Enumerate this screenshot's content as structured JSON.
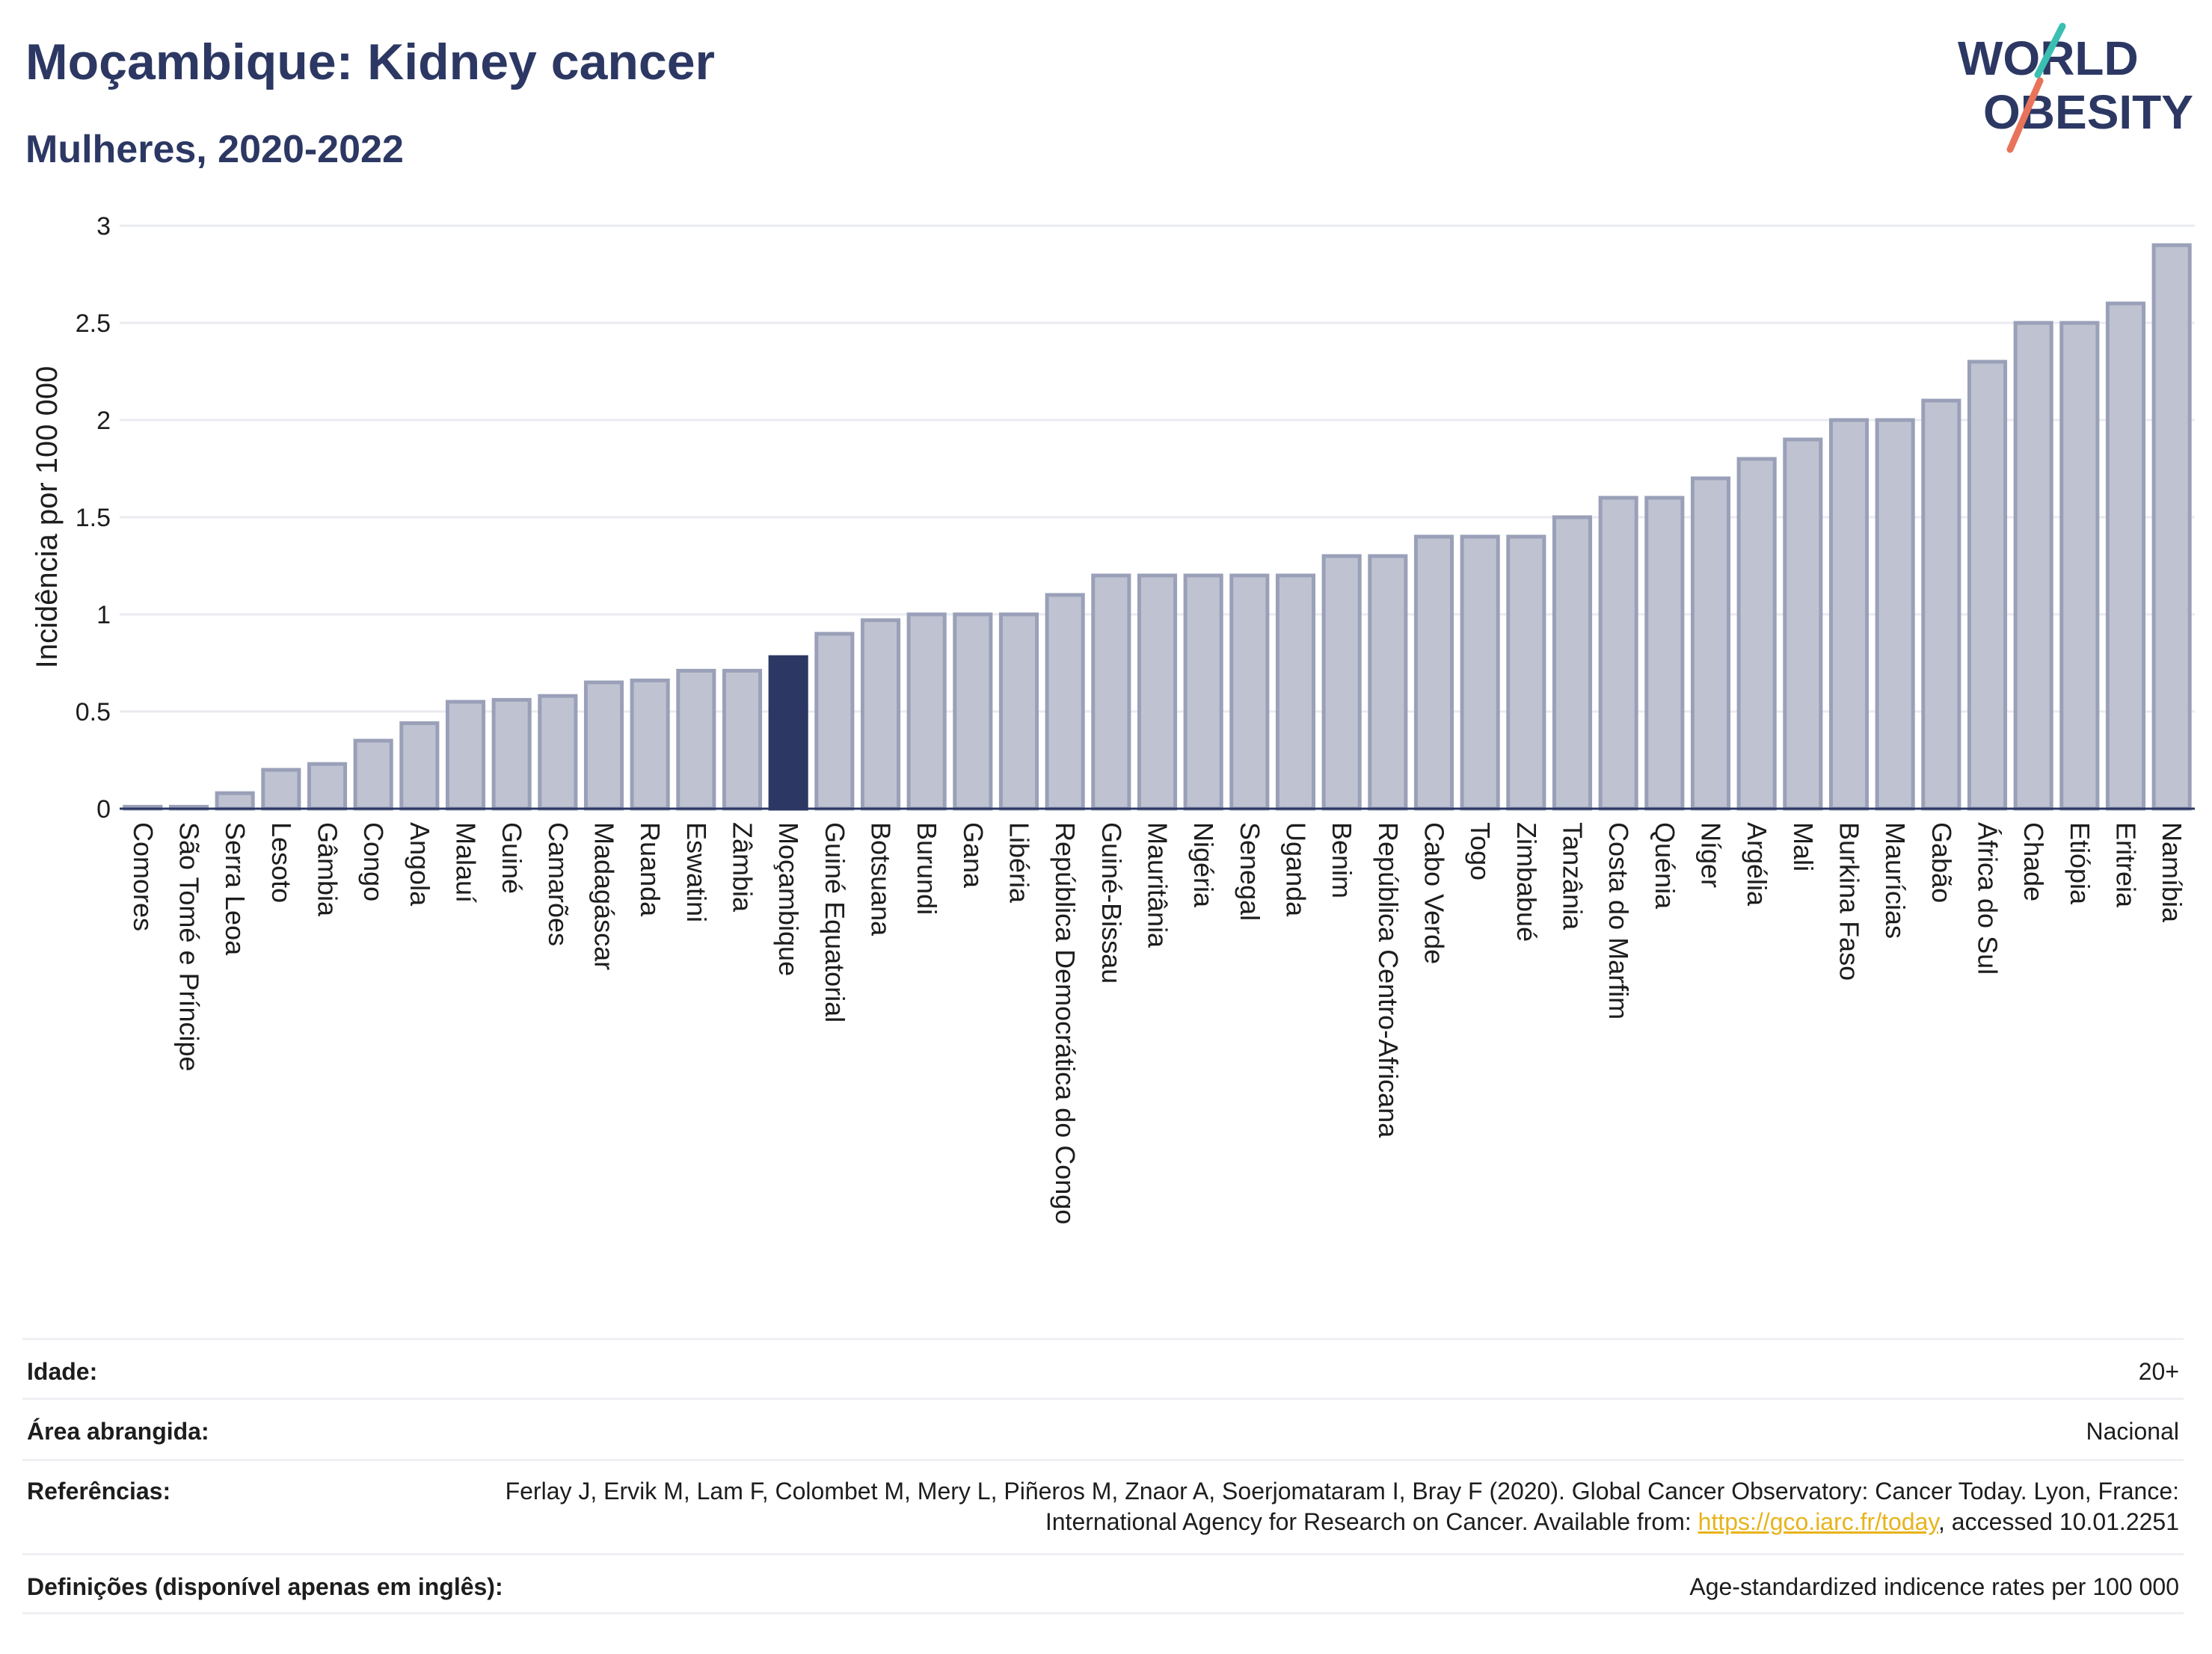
{
  "title": "Moçambique: Kidney cancer",
  "subtitle": "Mulheres, 2020-2022",
  "logo": {
    "line1": "WORLD",
    "line2": "OBESITY"
  },
  "colors": {
    "title": "#2c3863",
    "bar": "#bfc3d1",
    "bar_border": "#9aa0b8",
    "highlight": "#2c3863",
    "logo_teal": "#3bbfb2",
    "logo_red": "#e8735a",
    "link": "#e8b31a"
  },
  "chart_data": {
    "type": "bar",
    "ylabel": "Incidência por 100 000",
    "xlabel": "",
    "ylim": [
      0,
      3
    ],
    "yticks": [
      0,
      0.5,
      1,
      1.5,
      2,
      2.5,
      3
    ],
    "grid": true,
    "highlight": "Moçambique",
    "categories": [
      "Comores",
      "São Tomé e Príncipe",
      "Serra Leoa",
      "Lesoto",
      "Gâmbia",
      "Congo",
      "Angola",
      "Malauí",
      "Guiné",
      "Camarões",
      "Madagáscar",
      "Ruanda",
      "Eswatini",
      "Zâmbia",
      "Moçambique",
      "Guiné Equatorial",
      "Botsuana",
      "Burundi",
      "Gana",
      "Libéria",
      "República Democrática do Congo",
      "Guiné-Bissau",
      "Mauritânia",
      "Nigéria",
      "Senegal",
      "Uganda",
      "Benim",
      "República Centro-Africana",
      "Cabo Verde",
      "Togo",
      "Zimbabué",
      "Tanzânia",
      "Costa do Marfim",
      "Quénia",
      "Níger",
      "Argélia",
      "Mali",
      "Burkina Faso",
      "Maurícias",
      "Gabão",
      "África do Sul",
      "Chade",
      "Etiópia",
      "Eritreia",
      "Namíbia"
    ],
    "values": [
      0.01,
      0.01,
      0.08,
      0.2,
      0.23,
      0.35,
      0.44,
      0.55,
      0.56,
      0.58,
      0.65,
      0.66,
      0.71,
      0.71,
      0.78,
      0.9,
      0.97,
      1.0,
      1.0,
      1.0,
      1.1,
      1.2,
      1.2,
      1.2,
      1.2,
      1.2,
      1.3,
      1.3,
      1.4,
      1.4,
      1.4,
      1.5,
      1.6,
      1.6,
      1.7,
      1.8,
      1.9,
      2.0,
      2.0,
      2.1,
      2.3,
      2.5,
      2.5,
      2.6,
      2.9
    ]
  },
  "info": {
    "age_label": "Idade:",
    "age_value": "20+",
    "area_label": "Área abrangida:",
    "area_value": "Nacional",
    "ref_label": "Referências:",
    "ref_text_1": "Ferlay J, Ervik M, Lam F, Colombet M, Mery L, Piñeros M, Znaor A, Soerjomataram I, Bray F (2020). Global Cancer Observatory: Cancer Today. Lyon, France: International Agency for Research on Cancer. Available from: ",
    "ref_link": "https://gco.iarc.fr/today",
    "ref_text_2": ", accessed 10.01.2251",
    "def_label": "Definições (disponível apenas em inglês):",
    "def_value": "Age-standardized indicence rates per 100 000"
  }
}
